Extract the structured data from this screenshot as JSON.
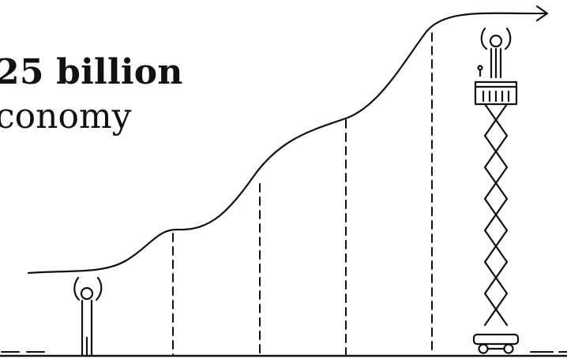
{
  "headline": {
    "line1": "25 billion",
    "line2": "conomy"
  },
  "illustration": {
    "stroke_color": "#111111",
    "background_color": "#ffffff",
    "icons": [
      "person-icon",
      "scissor-lift-icon"
    ]
  }
}
